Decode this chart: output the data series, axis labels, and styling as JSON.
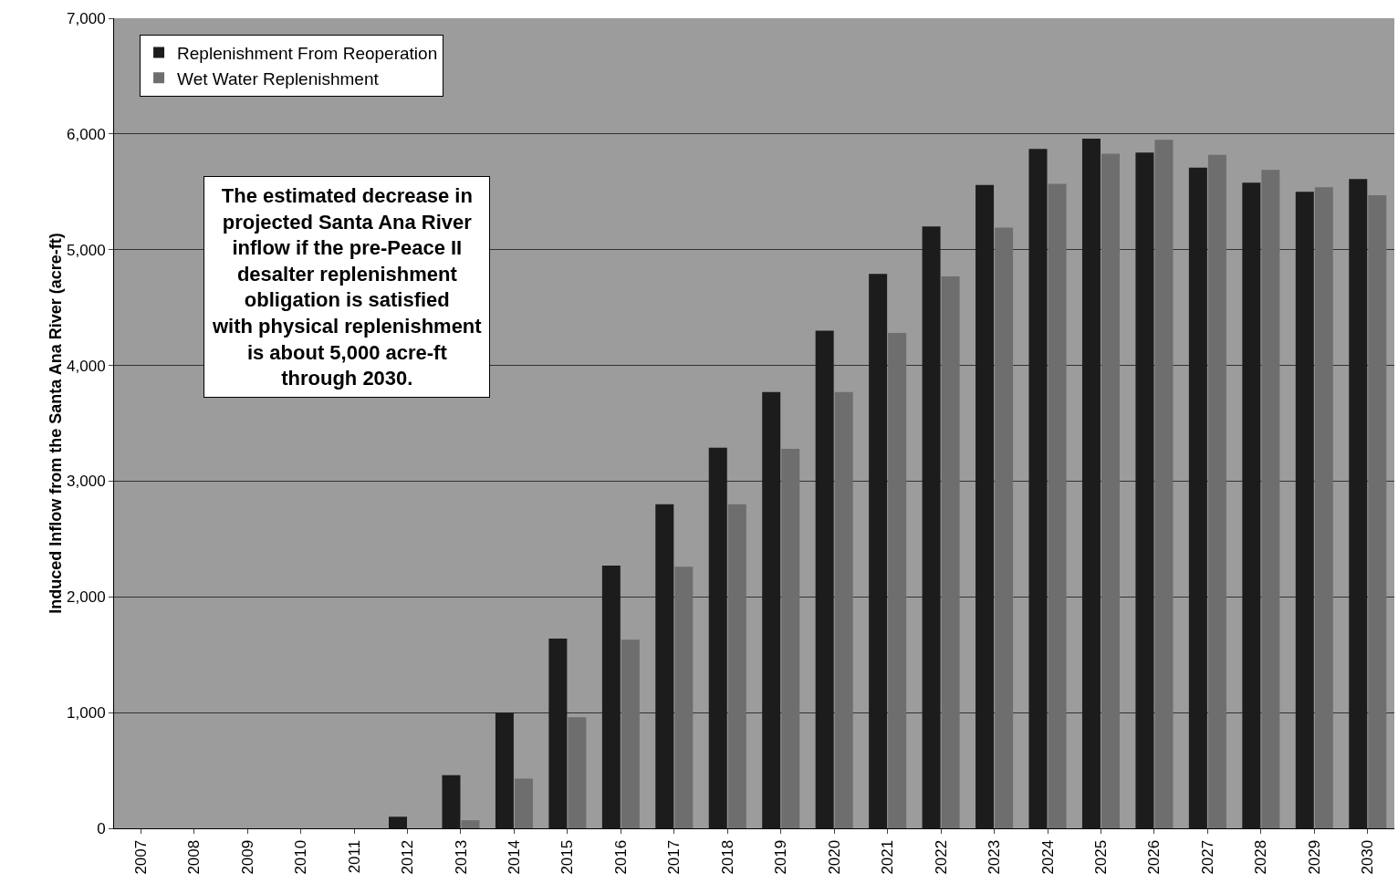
{
  "chart_data": {
    "type": "bar",
    "ylabel": "Induced Inflow from the Santa Ana River (acre-ft)",
    "categories": [
      "2007",
      "2008",
      "2009",
      "2010",
      "2011",
      "2012",
      "2013",
      "2014",
      "2015",
      "2016",
      "2017",
      "2018",
      "2019",
      "2020",
      "2021",
      "2022",
      "2023",
      "2024",
      "2025",
      "2026",
      "2027",
      "2028",
      "2029",
      "2030"
    ],
    "series": [
      {
        "name": "Replenishment From Reoperation",
        "color": "#1c1c1c",
        "values": [
          0,
          0,
          0,
          0,
          0,
          100,
          460,
          1000,
          1640,
          2270,
          2800,
          3290,
          3770,
          4300,
          4790,
          5200,
          5560,
          5870,
          5960,
          5840,
          5710,
          5580,
          5500,
          5610
        ]
      },
      {
        "name": "Wet Water Replenishment",
        "color": "#6e6e6e",
        "values": [
          0,
          0,
          0,
          0,
          0,
          0,
          70,
          430,
          960,
          1630,
          2260,
          2800,
          3280,
          3770,
          4280,
          4770,
          5190,
          5570,
          5830,
          5950,
          5820,
          5690,
          5540,
          5470
        ]
      }
    ],
    "ylim": [
      0,
      7000
    ],
    "yticks": [
      {
        "value": 0,
        "label": "0"
      },
      {
        "value": 1000,
        "label": "1,000"
      },
      {
        "value": 2000,
        "label": "2,000"
      },
      {
        "value": 3000,
        "label": "3,000"
      },
      {
        "value": 4000,
        "label": "4,000"
      },
      {
        "value": 5000,
        "label": "5,000"
      },
      {
        "value": 6000,
        "label": "6,000"
      },
      {
        "value": 7000,
        "label": "7,000"
      }
    ],
    "grid": "y",
    "legend": "top left",
    "annotations": [
      "The estimated decrease in projected Santa Ana River inflow if the pre-Peace II desalter replenishment obligation is satisfied with physical replenishment is about 5,000 acre-ft through 2030."
    ]
  }
}
